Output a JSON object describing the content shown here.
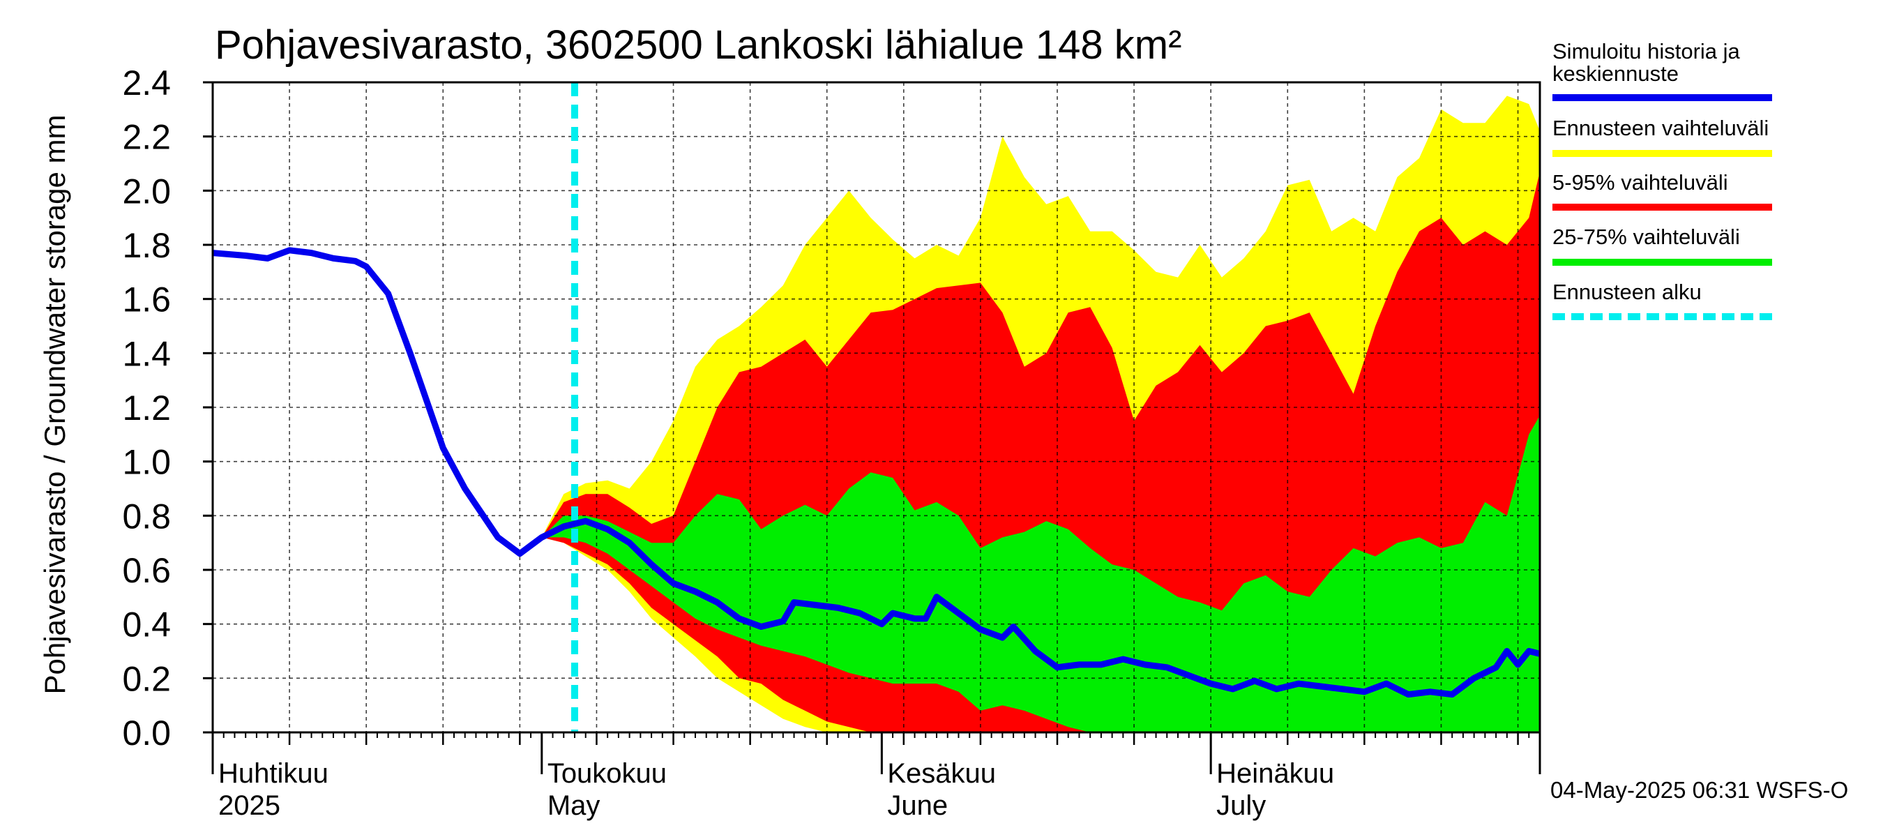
{
  "chart_data": {
    "type": "area",
    "title": "Pohjavesivarasto, 3602500 Lankoski lähialue 148 km²",
    "ylabel": "Pohjavesivarasto / Groundwater storage   mm",
    "ylim": [
      0,
      2.4
    ],
    "yticks": [
      "0.0",
      "0.2",
      "0.4",
      "0.6",
      "0.8",
      "1.0",
      "1.2",
      "1.4",
      "1.6",
      "1.8",
      "2.0",
      "2.2",
      "2.4"
    ],
    "grid": true,
    "legend_position": "right",
    "x_start": "2025-04-01",
    "x_end": "2025-07-31",
    "forecast_start": "2025-05-04",
    "month_labels": [
      {
        "date": "2025-04-01",
        "line1": "Huhtikuu",
        "line2": "2025"
      },
      {
        "date": "2025-05-01",
        "line1": "Toukokuu",
        "line2": "May"
      },
      {
        "date": "2025-06-01",
        "line1": "Kesäkuu",
        "line2": "June"
      },
      {
        "date": "2025-07-01",
        "line1": "Heinäkuu",
        "line2": "July"
      }
    ],
    "colors": {
      "history": "#0000ee",
      "range_full": "#ffff00",
      "range_5_95": "#ff0000",
      "range_25_75": "#00ee00",
      "forecast_start": "#00eeee"
    },
    "series": [
      {
        "name": "Simuloitu historia ja keskiennuste",
        "points": [
          [
            "2025-04-01",
            1.77
          ],
          [
            "2025-04-04",
            1.76
          ],
          [
            "2025-04-06",
            1.75
          ],
          [
            "2025-04-08",
            1.78
          ],
          [
            "2025-04-10",
            1.77
          ],
          [
            "2025-04-12",
            1.75
          ],
          [
            "2025-04-14",
            1.74
          ],
          [
            "2025-04-15",
            1.72
          ],
          [
            "2025-04-17",
            1.62
          ],
          [
            "2025-04-19",
            1.4
          ],
          [
            "2025-04-22",
            1.05
          ],
          [
            "2025-04-24",
            0.9
          ],
          [
            "2025-04-27",
            0.72
          ],
          [
            "2025-04-29",
            0.66
          ],
          [
            "2025-05-01",
            0.72
          ],
          [
            "2025-05-03",
            0.76
          ],
          [
            "2025-05-05",
            0.78
          ],
          [
            "2025-05-07",
            0.75
          ],
          [
            "2025-05-09",
            0.7
          ],
          [
            "2025-05-11",
            0.62
          ],
          [
            "2025-05-13",
            0.55
          ],
          [
            "2025-05-15",
            0.52
          ],
          [
            "2025-05-17",
            0.48
          ],
          [
            "2025-05-19",
            0.42
          ],
          [
            "2025-05-21",
            0.39
          ],
          [
            "2025-05-23",
            0.41
          ],
          [
            "2025-05-24",
            0.48
          ],
          [
            "2025-05-26",
            0.47
          ],
          [
            "2025-05-28",
            0.46
          ],
          [
            "2025-05-30",
            0.44
          ],
          [
            "2025-06-01",
            0.4
          ],
          [
            "2025-06-02",
            0.44
          ],
          [
            "2025-06-04",
            0.42
          ],
          [
            "2025-06-05",
            0.42
          ],
          [
            "2025-06-06",
            0.5
          ],
          [
            "2025-06-08",
            0.44
          ],
          [
            "2025-06-10",
            0.38
          ],
          [
            "2025-06-12",
            0.35
          ],
          [
            "2025-06-13",
            0.39
          ],
          [
            "2025-06-15",
            0.3
          ],
          [
            "2025-06-17",
            0.24
          ],
          [
            "2025-06-19",
            0.25
          ],
          [
            "2025-06-21",
            0.25
          ],
          [
            "2025-06-23",
            0.27
          ],
          [
            "2025-06-25",
            0.25
          ],
          [
            "2025-06-27",
            0.24
          ],
          [
            "2025-06-29",
            0.21
          ],
          [
            "2025-07-01",
            0.18
          ],
          [
            "2025-07-03",
            0.16
          ],
          [
            "2025-07-05",
            0.19
          ],
          [
            "2025-07-07",
            0.16
          ],
          [
            "2025-07-09",
            0.18
          ],
          [
            "2025-07-11",
            0.17
          ],
          [
            "2025-07-13",
            0.16
          ],
          [
            "2025-07-15",
            0.15
          ],
          [
            "2025-07-17",
            0.18
          ],
          [
            "2025-07-19",
            0.14
          ],
          [
            "2025-07-21",
            0.15
          ],
          [
            "2025-07-23",
            0.14
          ],
          [
            "2025-07-25",
            0.2
          ],
          [
            "2025-07-26",
            0.22
          ],
          [
            "2025-07-27",
            0.24
          ],
          [
            "2025-07-28",
            0.3
          ],
          [
            "2025-07-29",
            0.25
          ],
          [
            "2025-07-30",
            0.3
          ],
          [
            "2025-07-31",
            0.29
          ]
        ]
      },
      {
        "name": "Ennusteen vaihteluväli",
        "points": [
          [
            "2025-05-01",
            0.72,
            0.72
          ],
          [
            "2025-05-03",
            0.7,
            0.88
          ],
          [
            "2025-05-05",
            0.65,
            0.92
          ],
          [
            "2025-05-07",
            0.6,
            0.93
          ],
          [
            "2025-05-09",
            0.52,
            0.9
          ],
          [
            "2025-05-11",
            0.42,
            1.0
          ],
          [
            "2025-05-13",
            0.35,
            1.15
          ],
          [
            "2025-05-15",
            0.28,
            1.35
          ],
          [
            "2025-05-17",
            0.2,
            1.45
          ],
          [
            "2025-05-19",
            0.15,
            1.5
          ],
          [
            "2025-05-21",
            0.1,
            1.57
          ],
          [
            "2025-05-23",
            0.05,
            1.65
          ],
          [
            "2025-05-25",
            0.02,
            1.8
          ],
          [
            "2025-05-27",
            0.0,
            1.9
          ],
          [
            "2025-05-29",
            0.0,
            2.0
          ],
          [
            "2025-05-31",
            0.0,
            1.9
          ],
          [
            "2025-06-02",
            0.0,
            1.82
          ],
          [
            "2025-06-04",
            0.0,
            1.75
          ],
          [
            "2025-06-06",
            0.0,
            1.8
          ],
          [
            "2025-06-08",
            0.0,
            1.76
          ],
          [
            "2025-06-10",
            0.0,
            1.9
          ],
          [
            "2025-06-12",
            0.0,
            2.2
          ],
          [
            "2025-06-14",
            0.0,
            2.05
          ],
          [
            "2025-06-16",
            0.0,
            1.95
          ],
          [
            "2025-06-18",
            0.0,
            1.98
          ],
          [
            "2025-06-20",
            0.0,
            1.85
          ],
          [
            "2025-06-22",
            0.0,
            1.85
          ],
          [
            "2025-06-24",
            0.0,
            1.78
          ],
          [
            "2025-06-26",
            0.0,
            1.7
          ],
          [
            "2025-06-28",
            0.0,
            1.68
          ],
          [
            "2025-06-30",
            0.0,
            1.8
          ],
          [
            "2025-07-02",
            0.0,
            1.68
          ],
          [
            "2025-07-04",
            0.0,
            1.75
          ],
          [
            "2025-07-06",
            0.0,
            1.85
          ],
          [
            "2025-07-08",
            0.0,
            2.02
          ],
          [
            "2025-07-10",
            0.0,
            2.04
          ],
          [
            "2025-07-12",
            0.0,
            1.85
          ],
          [
            "2025-07-14",
            0.0,
            1.9
          ],
          [
            "2025-07-16",
            0.0,
            1.85
          ],
          [
            "2025-07-18",
            0.0,
            2.05
          ],
          [
            "2025-07-20",
            0.0,
            2.12
          ],
          [
            "2025-07-22",
            0.0,
            2.3
          ],
          [
            "2025-07-24",
            0.0,
            2.25
          ],
          [
            "2025-07-26",
            0.0,
            2.25
          ],
          [
            "2025-07-28",
            0.0,
            2.35
          ],
          [
            "2025-07-30",
            0.0,
            2.32
          ],
          [
            "2025-07-31",
            0.0,
            2.22
          ]
        ]
      },
      {
        "name": "5-95% vaihteluväli",
        "points": [
          [
            "2025-05-01",
            0.72,
            0.72
          ],
          [
            "2025-05-03",
            0.7,
            0.85
          ],
          [
            "2025-05-05",
            0.66,
            0.88
          ],
          [
            "2025-05-07",
            0.62,
            0.88
          ],
          [
            "2025-05-09",
            0.55,
            0.83
          ],
          [
            "2025-05-11",
            0.46,
            0.77
          ],
          [
            "2025-05-13",
            0.4,
            0.8
          ],
          [
            "2025-05-15",
            0.34,
            1.0
          ],
          [
            "2025-05-17",
            0.28,
            1.2
          ],
          [
            "2025-05-19",
            0.2,
            1.33
          ],
          [
            "2025-05-21",
            0.18,
            1.35
          ],
          [
            "2025-05-23",
            0.12,
            1.4
          ],
          [
            "2025-05-25",
            0.08,
            1.45
          ],
          [
            "2025-05-27",
            0.04,
            1.35
          ],
          [
            "2025-05-29",
            0.02,
            1.45
          ],
          [
            "2025-05-31",
            0.0,
            1.55
          ],
          [
            "2025-06-02",
            0.0,
            1.56
          ],
          [
            "2025-06-04",
            0.0,
            1.6
          ],
          [
            "2025-06-06",
            0.0,
            1.64
          ],
          [
            "2025-06-08",
            0.0,
            1.65
          ],
          [
            "2025-06-10",
            0.0,
            1.66
          ],
          [
            "2025-06-12",
            0.0,
            1.55
          ],
          [
            "2025-06-14",
            0.0,
            1.35
          ],
          [
            "2025-06-16",
            0.0,
            1.4
          ],
          [
            "2025-06-18",
            0.0,
            1.55
          ],
          [
            "2025-06-20",
            0.0,
            1.57
          ],
          [
            "2025-06-22",
            0.0,
            1.42
          ],
          [
            "2025-06-24",
            0.0,
            1.15
          ],
          [
            "2025-06-26",
            0.0,
            1.28
          ],
          [
            "2025-06-28",
            0.0,
            1.33
          ],
          [
            "2025-06-30",
            0.0,
            1.43
          ],
          [
            "2025-07-02",
            0.0,
            1.33
          ],
          [
            "2025-07-04",
            0.0,
            1.4
          ],
          [
            "2025-07-06",
            0.0,
            1.5
          ],
          [
            "2025-07-08",
            0.0,
            1.52
          ],
          [
            "2025-07-10",
            0.0,
            1.55
          ],
          [
            "2025-07-12",
            0.0,
            1.4
          ],
          [
            "2025-07-14",
            0.0,
            1.25
          ],
          [
            "2025-07-16",
            0.0,
            1.5
          ],
          [
            "2025-07-18",
            0.0,
            1.7
          ],
          [
            "2025-07-20",
            0.0,
            1.85
          ],
          [
            "2025-07-22",
            0.0,
            1.9
          ],
          [
            "2025-07-24",
            0.0,
            1.8
          ],
          [
            "2025-07-26",
            0.0,
            1.85
          ],
          [
            "2025-07-28",
            0.0,
            1.8
          ],
          [
            "2025-07-30",
            0.0,
            1.9
          ],
          [
            "2025-07-31",
            0.0,
            2.07
          ]
        ]
      },
      {
        "name": "25-75% vaihteluväli",
        "points": [
          [
            "2025-05-01",
            0.72,
            0.72
          ],
          [
            "2025-05-03",
            0.72,
            0.8
          ],
          [
            "2025-05-05",
            0.7,
            0.8
          ],
          [
            "2025-05-07",
            0.66,
            0.78
          ],
          [
            "2025-05-09",
            0.6,
            0.74
          ],
          [
            "2025-05-11",
            0.54,
            0.7
          ],
          [
            "2025-05-13",
            0.48,
            0.7
          ],
          [
            "2025-05-15",
            0.42,
            0.8
          ],
          [
            "2025-05-17",
            0.38,
            0.88
          ],
          [
            "2025-05-19",
            0.35,
            0.86
          ],
          [
            "2025-05-21",
            0.32,
            0.75
          ],
          [
            "2025-05-23",
            0.3,
            0.8
          ],
          [
            "2025-05-25",
            0.28,
            0.84
          ],
          [
            "2025-05-27",
            0.25,
            0.8
          ],
          [
            "2025-05-29",
            0.22,
            0.9
          ],
          [
            "2025-05-31",
            0.2,
            0.96
          ],
          [
            "2025-06-02",
            0.18,
            0.94
          ],
          [
            "2025-06-04",
            0.18,
            0.82
          ],
          [
            "2025-06-06",
            0.18,
            0.85
          ],
          [
            "2025-06-08",
            0.15,
            0.8
          ],
          [
            "2025-06-10",
            0.08,
            0.68
          ],
          [
            "2025-06-12",
            0.1,
            0.72
          ],
          [
            "2025-06-14",
            0.08,
            0.74
          ],
          [
            "2025-06-16",
            0.05,
            0.78
          ],
          [
            "2025-06-18",
            0.02,
            0.75
          ],
          [
            "2025-06-20",
            0.0,
            0.68
          ],
          [
            "2025-06-22",
            0.0,
            0.62
          ],
          [
            "2025-06-24",
            0.0,
            0.6
          ],
          [
            "2025-06-26",
            0.0,
            0.55
          ],
          [
            "2025-06-28",
            0.0,
            0.5
          ],
          [
            "2025-06-30",
            0.0,
            0.48
          ],
          [
            "2025-07-02",
            0.0,
            0.45
          ],
          [
            "2025-07-04",
            0.0,
            0.55
          ],
          [
            "2025-07-06",
            0.0,
            0.58
          ],
          [
            "2025-07-08",
            0.0,
            0.52
          ],
          [
            "2025-07-10",
            0.0,
            0.5
          ],
          [
            "2025-07-12",
            0.0,
            0.6
          ],
          [
            "2025-07-14",
            0.0,
            0.68
          ],
          [
            "2025-07-16",
            0.0,
            0.65
          ],
          [
            "2025-07-18",
            0.0,
            0.7
          ],
          [
            "2025-07-20",
            0.0,
            0.72
          ],
          [
            "2025-07-22",
            0.0,
            0.68
          ],
          [
            "2025-07-24",
            0.0,
            0.7
          ],
          [
            "2025-07-26",
            0.0,
            0.85
          ],
          [
            "2025-07-28",
            0.0,
            0.8
          ],
          [
            "2025-07-30",
            0.0,
            1.1
          ],
          [
            "2025-07-31",
            0.0,
            1.17
          ]
        ]
      },
      {
        "name": "Ennusteen alku",
        "date": "2025-05-04"
      }
    ],
    "footer": "04-May-2025 06:31 WSFS-O"
  }
}
